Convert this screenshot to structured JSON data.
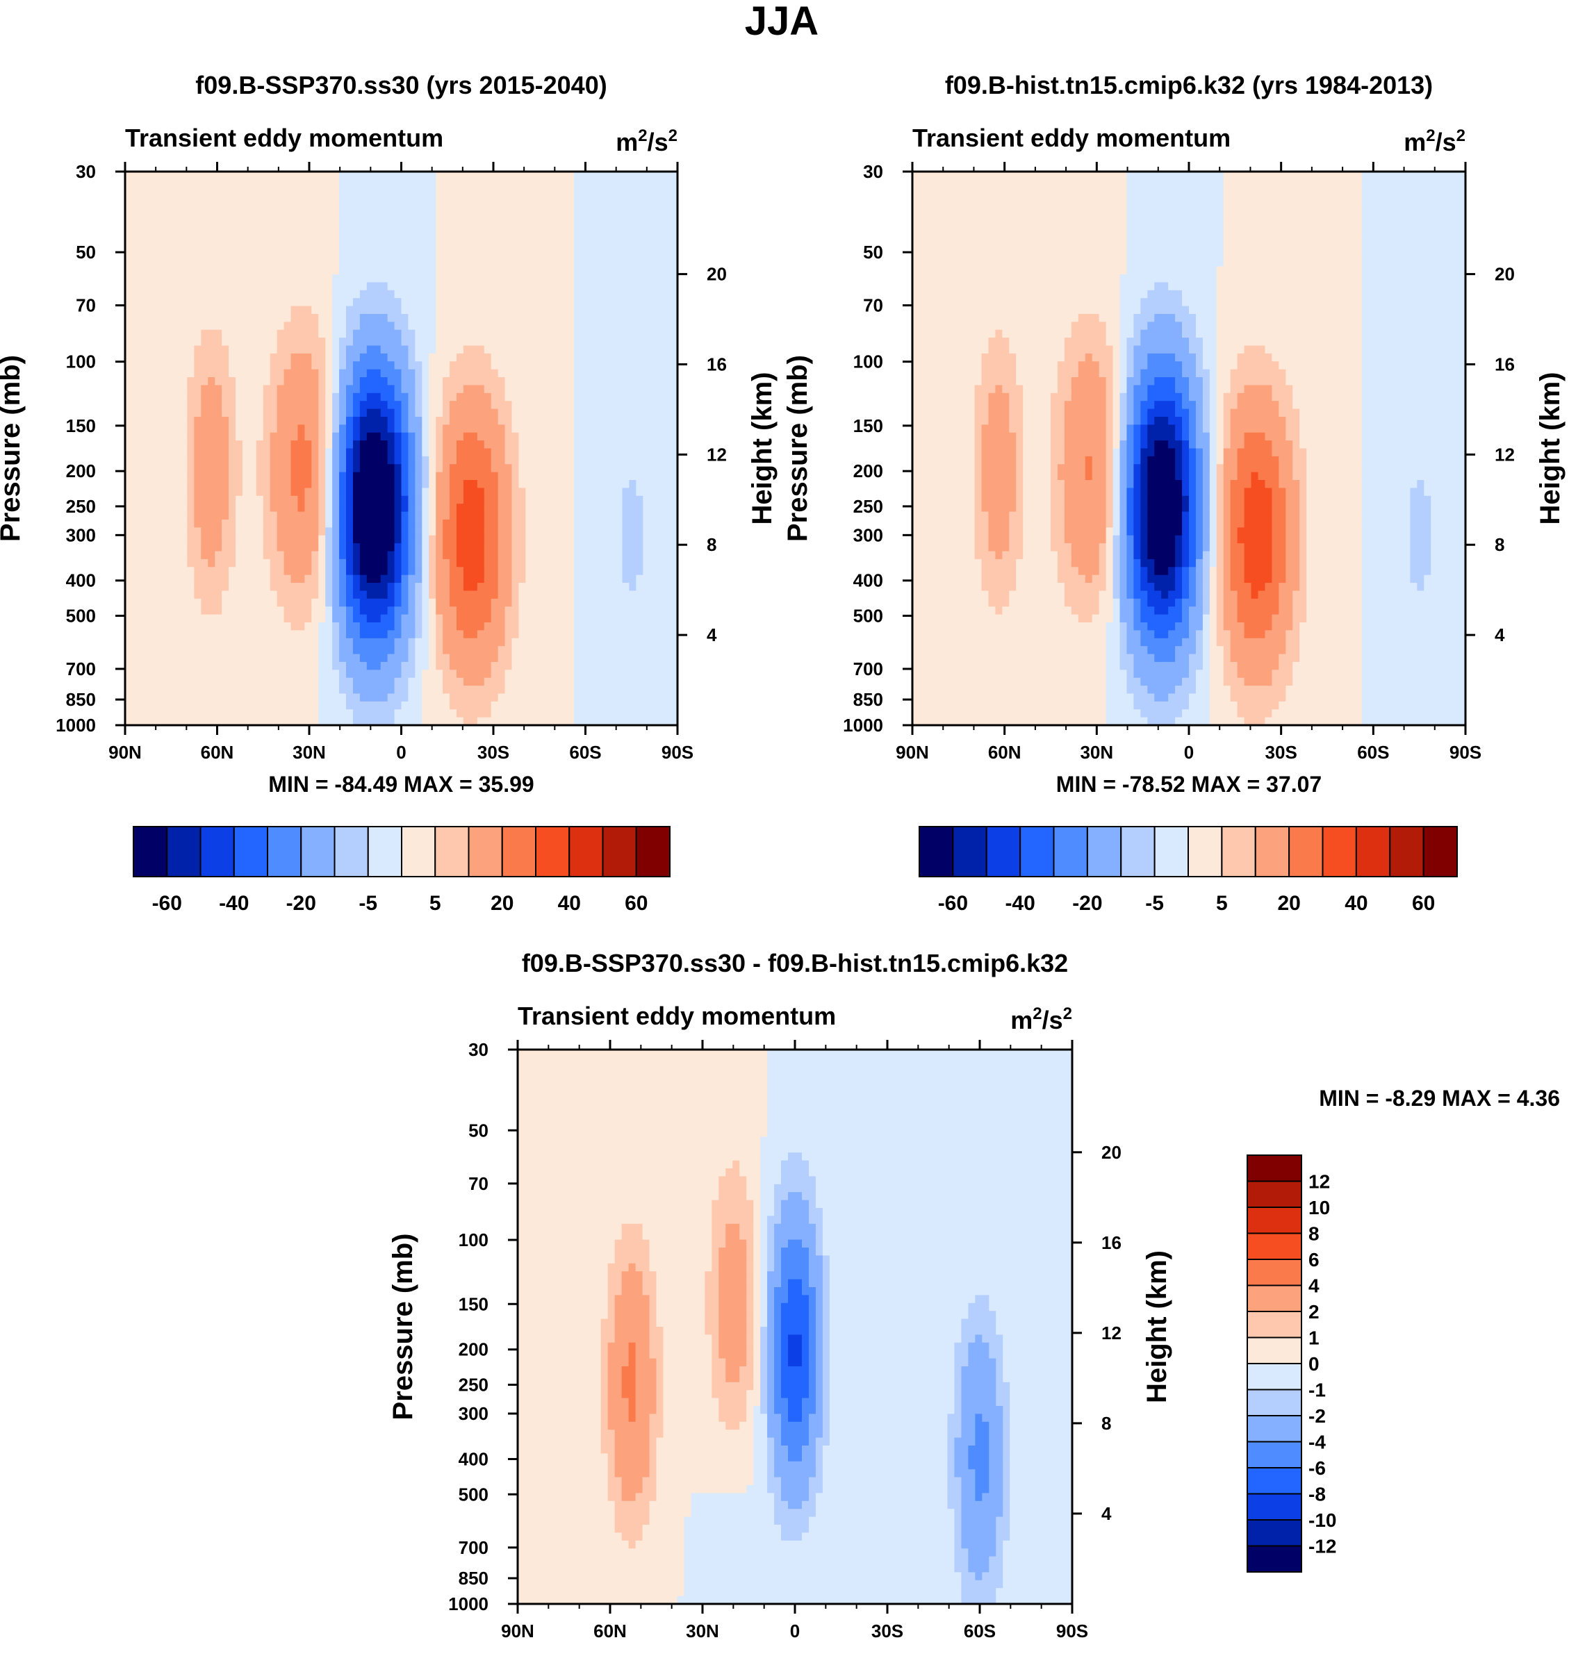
{
  "figure": {
    "title": "JJA",
    "colors": {
      "main_levels": [
        "#000066",
        "#0022aa",
        "#0d3fe6",
        "#2266ff",
        "#4f8cff",
        "#85afff",
        "#b4cffe",
        "#daeafe",
        "#fde9d9",
        "#fec8ae",
        "#fca27d",
        "#fa7a4c",
        "#f64d21",
        "#dc3010",
        "#b21b07",
        "#800000"
      ],
      "diff_levels": [
        "#000066",
        "#0022aa",
        "#0d3fe6",
        "#2266ff",
        "#4f8cff",
        "#85afff",
        "#b4cffe",
        "#daeafe",
        "#fde9d9",
        "#fec8ae",
        "#fca27d",
        "#fa7a4c",
        "#f64d21",
        "#dc3010",
        "#b21b07",
        "#800000"
      ]
    }
  },
  "chart_data": [
    {
      "type": "contour",
      "id": "panel-a",
      "title": "f09.B-SSP370.ss30 (yrs 2015-2040)",
      "left_string": "Transient eddy momentum",
      "right_string_base": "m",
      "right_string_exp1": "2",
      "right_string_mid": "/s",
      "right_string_exp2": "2",
      "ylabel": "Pressure (mb)",
      "y2label": "Height (km)",
      "xticks": [
        "90N",
        "60N",
        "30N",
        "0",
        "30S",
        "60S",
        "90S"
      ],
      "yticks": [
        "30",
        "50",
        "70",
        "100",
        "150",
        "200",
        "250",
        "300",
        "400",
        "500",
        "700",
        "850",
        "1000"
      ],
      "y2ticks": [
        "20",
        "16",
        "12",
        "8",
        "4"
      ],
      "stats": "MIN = -84.49  MAX =  35.99",
      "colorbar_labels": [
        "-60",
        "-40",
        "-20",
        "-5",
        "5",
        "20",
        "40",
        "60"
      ],
      "levels": [
        -70,
        -60,
        -50,
        -40,
        -30,
        -20,
        -10,
        -5,
        0,
        5,
        10,
        20,
        30,
        40,
        50,
        60,
        70
      ],
      "features": [
        {
          "lat": 9,
          "p": 250,
          "amp": -84.49
        },
        {
          "lat": -23,
          "p": 300,
          "amp": 35.99
        },
        {
          "lat": 31,
          "p": 200,
          "amp": 24
        },
        {
          "lat": 62,
          "p": 200,
          "amp": 16
        },
        {
          "lat": -75,
          "p": 300,
          "amp": -6
        }
      ]
    },
    {
      "type": "contour",
      "id": "panel-b",
      "title": "f09.B-hist.tn15.cmip6.k32 (yrs 1984-2013)",
      "left_string": "Transient eddy momentum",
      "right_string_base": "m",
      "right_string_exp1": "2",
      "right_string_mid": "/s",
      "right_string_exp2": "2",
      "ylabel": "Pressure (mb)",
      "y2label": "Height (km)",
      "xticks": [
        "90N",
        "60N",
        "30N",
        "0",
        "30S",
        "60S",
        "90S"
      ],
      "yticks": [
        "30",
        "50",
        "70",
        "100",
        "150",
        "200",
        "250",
        "300",
        "400",
        "500",
        "700",
        "850",
        "1000"
      ],
      "y2ticks": [
        "20",
        "16",
        "12",
        "8",
        "4"
      ],
      "stats": "MIN = -78.52  MAX =  37.07",
      "colorbar_labels": [
        "-60",
        "-40",
        "-20",
        "-5",
        "5",
        "20",
        "40",
        "60"
      ],
      "levels": [
        -70,
        -60,
        -50,
        -40,
        -30,
        -20,
        -10,
        -5,
        0,
        5,
        10,
        20,
        30,
        40,
        50,
        60,
        70
      ],
      "features": [
        {
          "lat": 9,
          "p": 250,
          "amp": -78.52
        },
        {
          "lat": -22,
          "p": 300,
          "amp": 37.07
        },
        {
          "lat": 31,
          "p": 200,
          "amp": 22
        },
        {
          "lat": 62,
          "p": 200,
          "amp": 15
        },
        {
          "lat": -75,
          "p": 300,
          "amp": -6
        }
      ]
    },
    {
      "type": "contour",
      "id": "panel-c",
      "title": "f09.B-SSP370.ss30 - f09.B-hist.tn15.cmip6.k32",
      "left_string": "Transient eddy momentum",
      "right_string_base": "m",
      "right_string_exp1": "2",
      "right_string_mid": "/s",
      "right_string_exp2": "2",
      "ylabel": "Pressure (mb)",
      "y2label": "Height (km)",
      "xticks": [
        "90N",
        "60N",
        "30N",
        "0",
        "30S",
        "60S",
        "90S"
      ],
      "yticks": [
        "30",
        "50",
        "70",
        "100",
        "150",
        "200",
        "250",
        "300",
        "400",
        "500",
        "700",
        "850",
        "1000"
      ],
      "y2ticks": [
        "20",
        "16",
        "12",
        "8",
        "4"
      ],
      "stats": "MIN =  -8.29  MAX =   4.36",
      "colorbar_labels": [
        "12",
        "10",
        "8",
        "6",
        "4",
        "2",
        "1",
        "0",
        "-1",
        "-2",
        "-4",
        "-6",
        "-8",
        "-10",
        "-12"
      ],
      "levels": [
        -14,
        -12,
        -10,
        -8,
        -6,
        -4,
        -2,
        -1,
        0,
        1,
        2,
        4,
        6,
        8,
        10,
        12,
        14
      ],
      "features": [
        {
          "lat": 0,
          "p": 200,
          "amp": -8.29
        },
        {
          "lat": -60,
          "p": 400,
          "amp": -4.5
        },
        {
          "lat": 53,
          "p": 250,
          "amp": 4.36
        },
        {
          "lat": 20,
          "p": 150,
          "amp": 3
        },
        {
          "lat": 20,
          "p": 1000,
          "amp": -0.8
        }
      ]
    }
  ]
}
